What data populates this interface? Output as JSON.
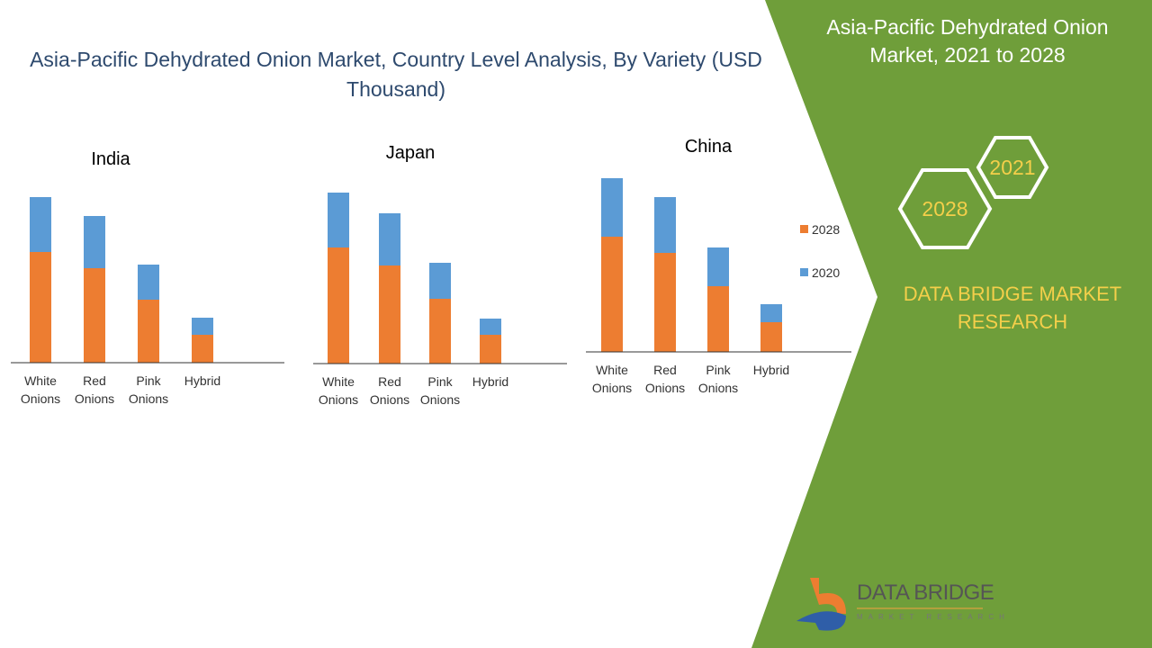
{
  "header": {
    "title": "Asia-Pacific Dehydrated Onion Market, Country Level Analysis, By Variety (USD Thousand)"
  },
  "side_panel": {
    "title": "Asia-Pacific Dehydrated Onion Market, 2021 to 2028",
    "hex_years": [
      "2021",
      "2028"
    ],
    "brand": "DATA BRIDGE MARKET RESEARCH",
    "logo_text": "DATA BRIDGE",
    "logo_subtext": "MARKET RESEARCH",
    "color": "#6f9e3a"
  },
  "colors": {
    "2028": "#ed7d31",
    "2020": "#5b9bd5"
  },
  "legend": [
    "2028",
    "2020"
  ],
  "chart_data": [
    {
      "type": "bar",
      "stacked": true,
      "title": "India",
      "categories": [
        "White Onions",
        "Red Onions",
        "Pink Onions",
        "Hybrid"
      ],
      "series": [
        {
          "name": "2028",
          "values": [
            123,
            105,
            70,
            31
          ]
        },
        {
          "name": "2020",
          "values": [
            61,
            58,
            39,
            19
          ]
        }
      ]
    },
    {
      "type": "bar",
      "stacked": true,
      "title": "Japan",
      "categories": [
        "White Onions",
        "Red Onions",
        "Pink Onions",
        "Hybrid"
      ],
      "series": [
        {
          "name": "2028",
          "values": [
            129,
            109,
            72,
            32
          ]
        },
        {
          "name": "2020",
          "values": [
            61,
            58,
            40,
            18
          ]
        }
      ]
    },
    {
      "type": "bar",
      "stacked": true,
      "title": "China",
      "legend": "right",
      "categories": [
        "White Onions",
        "Red Onions",
        "Pink Onions",
        "Hybrid"
      ],
      "series": [
        {
          "name": "2028",
          "values": [
            128,
            110,
            73,
            33
          ]
        },
        {
          "name": "2020",
          "values": [
            65,
            62,
            43,
            20
          ]
        }
      ]
    }
  ]
}
